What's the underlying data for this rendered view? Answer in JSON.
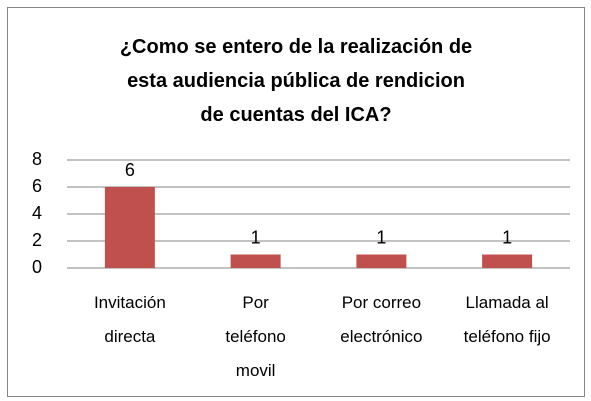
{
  "chart_data": {
    "type": "bar",
    "title": "¿Como se entero de la realización de esta audiencia pública de rendicion de cuentas del ICA?",
    "categories": [
      "Invitación directa",
      "Por teléfono movil",
      "Por correo electrónico",
      "Llamada al teléfono fijo"
    ],
    "values": [
      6,
      1,
      1,
      1
    ],
    "color": "#c0504d",
    "ylim": [
      0,
      8
    ],
    "yticks": [
      0,
      2,
      4,
      6,
      8
    ],
    "grid": true
  }
}
